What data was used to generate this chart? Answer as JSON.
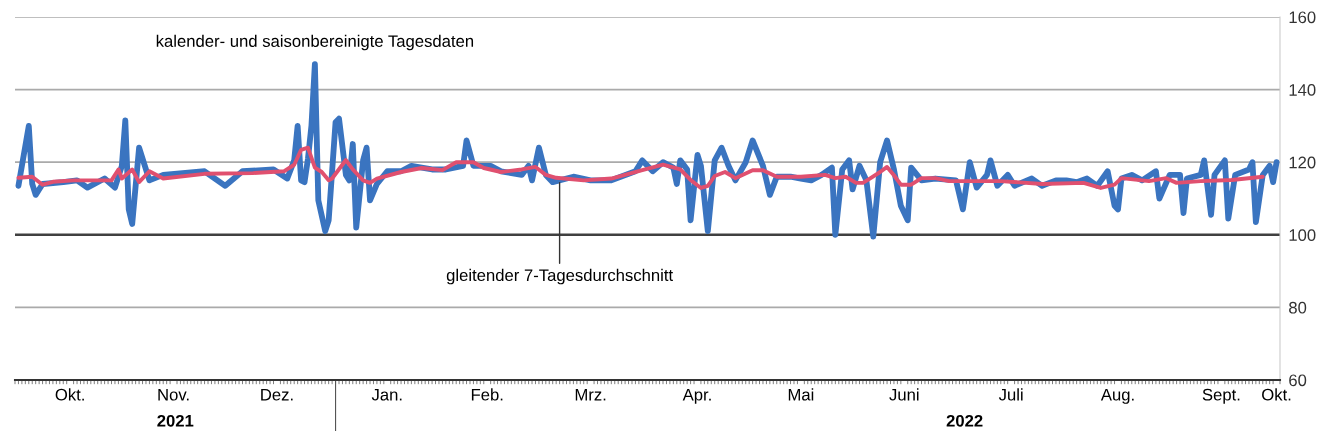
{
  "chart_data": {
    "type": "line",
    "xlim": [
      "2021-09-30",
      "2022-10-02"
    ],
    "ylim": [
      60,
      160
    ],
    "yticks": [
      60,
      80,
      100,
      120,
      140,
      160
    ],
    "xticks": [
      {
        "value": "2021-10-16",
        "label": "Okt."
      },
      {
        "value": "2021-11-15",
        "label": "Nov."
      },
      {
        "value": "2021-12-15",
        "label": "Dez."
      },
      {
        "value": "2022-01-16",
        "label": "Jan."
      },
      {
        "value": "2022-02-14",
        "label": "Feb."
      },
      {
        "value": "2022-03-16",
        "label": "Mrz."
      },
      {
        "value": "2022-04-16",
        "label": "Apr."
      },
      {
        "value": "2022-05-16",
        "label": "Mai"
      },
      {
        "value": "2022-06-15",
        "label": "Juni"
      },
      {
        "value": "2022-07-16",
        "label": "Juli"
      },
      {
        "value": "2022-08-16",
        "label": "Aug."
      },
      {
        "value": "2022-09-15",
        "label": "Sept."
      },
      {
        "value": "2022-10-01",
        "label": "Okt."
      }
    ],
    "grid": "y",
    "ref_lines": [
      {
        "axis": "y",
        "value": 100,
        "label": null,
        "color": "#404040"
      }
    ],
    "series": [
      {
        "color": "#3a74c0",
        "x": [
          "2021-10-01",
          "2021-10-04",
          "2021-10-05",
          "2021-10-06",
          "2021-10-08",
          "2021-10-14",
          "2021-10-18",
          "2021-10-21",
          "2021-10-26",
          "2021-10-29",
          "2021-10-31",
          "2021-11-01",
          "2021-11-02",
          "2021-11-03",
          "2021-11-05",
          "2021-11-08",
          "2021-11-12",
          "2021-11-24",
          "2021-11-30",
          "2021-12-05",
          "2021-12-14",
          "2021-12-18",
          "2021-12-20",
          "2021-12-21",
          "2021-12-22",
          "2021-12-23",
          "2021-12-24",
          "2021-12-25",
          "2021-12-26",
          "2021-12-27",
          "2021-12-29",
          "2021-12-30",
          "2022-01-01",
          "2022-01-02",
          "2022-01-04",
          "2022-01-05",
          "2022-01-06",
          "2022-01-07",
          "2022-01-09",
          "2022-01-10",
          "2022-01-11",
          "2022-01-13",
          "2022-01-16",
          "2022-01-20",
          "2022-01-23",
          "2022-01-29",
          "2022-02-02",
          "2022-02-07",
          "2022-02-08",
          "2022-02-10",
          "2022-02-15",
          "2022-02-18",
          "2022-02-24",
          "2022-02-26",
          "2022-02-27",
          "2022-03-01",
          "2022-03-03",
          "2022-03-05",
          "2022-03-11",
          "2022-03-16",
          "2022-03-22",
          "2022-03-29",
          "2022-03-31",
          "2022-04-03",
          "2022-04-06",
          "2022-04-09",
          "2022-04-10",
          "2022-04-11",
          "2022-04-13",
          "2022-04-14",
          "2022-04-16",
          "2022-04-17",
          "2022-04-19",
          "2022-04-21",
          "2022-04-23",
          "2022-04-25",
          "2022-04-27",
          "2022-04-30",
          "2022-05-02",
          "2022-05-05",
          "2022-05-07",
          "2022-05-09",
          "2022-05-13",
          "2022-05-16",
          "2022-05-19",
          "2022-05-22",
          "2022-05-25",
          "2022-05-26",
          "2022-05-28",
          "2022-05-30",
          "2022-05-31",
          "2022-06-02",
          "2022-06-04",
          "2022-06-06",
          "2022-06-08",
          "2022-06-10",
          "2022-06-12",
          "2022-06-14",
          "2022-06-16",
          "2022-06-17",
          "2022-06-20",
          "2022-06-24",
          "2022-06-30",
          "2022-07-02",
          "2022-07-04",
          "2022-07-06",
          "2022-07-09",
          "2022-07-10",
          "2022-07-12",
          "2022-07-15",
          "2022-07-17",
          "2022-07-22",
          "2022-07-25",
          "2022-07-29",
          "2022-08-01",
          "2022-08-04",
          "2022-08-07",
          "2022-08-10",
          "2022-08-13",
          "2022-08-15",
          "2022-08-16",
          "2022-08-17",
          "2022-08-20",
          "2022-08-23",
          "2022-08-27",
          "2022-08-28",
          "2022-08-31",
          "2022-09-03",
          "2022-09-04",
          "2022-09-05",
          "2022-09-09",
          "2022-09-10",
          "2022-09-12",
          "2022-09-13",
          "2022-09-16",
          "2022-09-17",
          "2022-09-19",
          "2022-09-23",
          "2022-09-24",
          "2022-09-25",
          "2022-09-27",
          "2022-09-29",
          "2022-09-30",
          "2022-10-01"
        ],
        "values": [
          113.5,
          130,
          114,
          111,
          114,
          114.5,
          115,
          113,
          115.5,
          113,
          119,
          131.5,
          107,
          103,
          124,
          115,
          116.5,
          117.5,
          113.5,
          117.5,
          118,
          115.5,
          120.5,
          130,
          115,
          114.5,
          121,
          130,
          147,
          109.5,
          101,
          104,
          131,
          132,
          116.5,
          115,
          125,
          102,
          120.5,
          124,
          109.5,
          114,
          117.5,
          117.5,
          119,
          118,
          118,
          119,
          126,
          119,
          119,
          117.5,
          116.5,
          119,
          115,
          124,
          116.5,
          114.5,
          116,
          115,
          115,
          117.5,
          120.5,
          117.5,
          120,
          118.5,
          114,
          120.5,
          118,
          104,
          122,
          119,
          101,
          120.5,
          124,
          119,
          115,
          120,
          126,
          119,
          111,
          116,
          116,
          115.5,
          115,
          116.5,
          118.5,
          100,
          118,
          120.5,
          112.5,
          119,
          115,
          99.5,
          120,
          126,
          118,
          108,
          104,
          118.5,
          115,
          115.5,
          115,
          107,
          120,
          113,
          116.5,
          120.5,
          113.5,
          116.5,
          113.5,
          115.5,
          113.5,
          115,
          115,
          114.5,
          115.5,
          113.5,
          117.5,
          108,
          107,
          115.5,
          116.5,
          115,
          117.5,
          110,
          116.5,
          116.5,
          106,
          115.5,
          116.5,
          120.5,
          105.5,
          116.5,
          120.5,
          104.5,
          116.5,
          118,
          120,
          103.5,
          116.5,
          119,
          114.5,
          120
        ]
      },
      {
        "color": "#e0506f",
        "x": [
          "2021-10-01",
          "2021-10-05",
          "2021-10-08",
          "2021-10-11",
          "2021-10-17",
          "2021-10-26",
          "2021-10-28",
          "2021-10-30",
          "2021-10-31",
          "2021-11-03",
          "2021-11-05",
          "2021-11-08",
          "2021-11-12",
          "2021-11-24",
          "2021-12-08",
          "2021-12-17",
          "2021-12-20",
          "2021-12-22",
          "2021-12-24",
          "2021-12-26",
          "2021-12-28",
          "2021-12-30",
          "2021-12-31",
          "2022-01-04",
          "2022-01-06",
          "2022-01-09",
          "2022-01-11",
          "2022-01-13",
          "2022-01-20",
          "2022-01-26",
          "2022-02-01",
          "2022-02-05",
          "2022-02-10",
          "2022-02-13",
          "2022-02-18",
          "2022-02-24",
          "2022-02-28",
          "2022-03-03",
          "2022-03-06",
          "2022-03-14",
          "2022-03-22",
          "2022-03-31",
          "2022-04-06",
          "2022-04-11",
          "2022-04-14",
          "2022-04-17",
          "2022-04-19",
          "2022-04-21",
          "2022-04-24",
          "2022-04-27",
          "2022-05-02",
          "2022-05-05",
          "2022-05-09",
          "2022-05-16",
          "2022-05-23",
          "2022-05-26",
          "2022-05-29",
          "2022-06-01",
          "2022-06-03",
          "2022-06-05",
          "2022-06-08",
          "2022-06-10",
          "2022-06-12",
          "2022-06-14",
          "2022-06-17",
          "2022-06-20",
          "2022-06-24",
          "2022-06-28",
          "2022-07-13",
          "2022-07-25",
          "2022-08-06",
          "2022-08-11",
          "2022-08-15",
          "2022-08-17",
          "2022-08-25",
          "2022-08-30",
          "2022-09-02",
          "2022-09-09",
          "2022-09-18",
          "2022-09-27"
        ],
        "values": [
          115.7,
          116,
          113.8,
          114.6,
          115,
          115,
          115,
          118,
          115.5,
          118,
          114.5,
          117.5,
          115.5,
          116.8,
          117,
          117.5,
          119.3,
          123.4,
          124,
          118.5,
          117.3,
          115,
          115.5,
          120.6,
          118,
          115,
          114.3,
          115.5,
          117.3,
          118.4,
          117.8,
          120,
          120,
          118.4,
          117.3,
          118,
          118.7,
          116.5,
          115.7,
          115,
          115.5,
          117.8,
          119.3,
          118,
          115.1,
          112.9,
          113.5,
          116.2,
          117.3,
          115.6,
          117.8,
          117.8,
          116,
          116,
          116.5,
          115.6,
          116,
          114.3,
          114.3,
          115.5,
          117.3,
          118.7,
          116.4,
          113.8,
          113.8,
          115.6,
          115.6,
          114.8,
          114.8,
          114,
          114.3,
          112.9,
          113.8,
          115.6,
          114.8,
          115.6,
          114.3,
          114.8,
          115.1,
          116
        ]
      }
    ],
    "annotations": [
      {
        "text": "kalender- und saisonbereinigte Tagesdaten",
        "x": "2021-12-26",
        "y": 147
      },
      {
        "text": "gleitender 7-Tagesdurchschnitt",
        "x": "2022-03-07",
        "y": 115.5
      },
      "2021",
      "2022"
    ]
  }
}
